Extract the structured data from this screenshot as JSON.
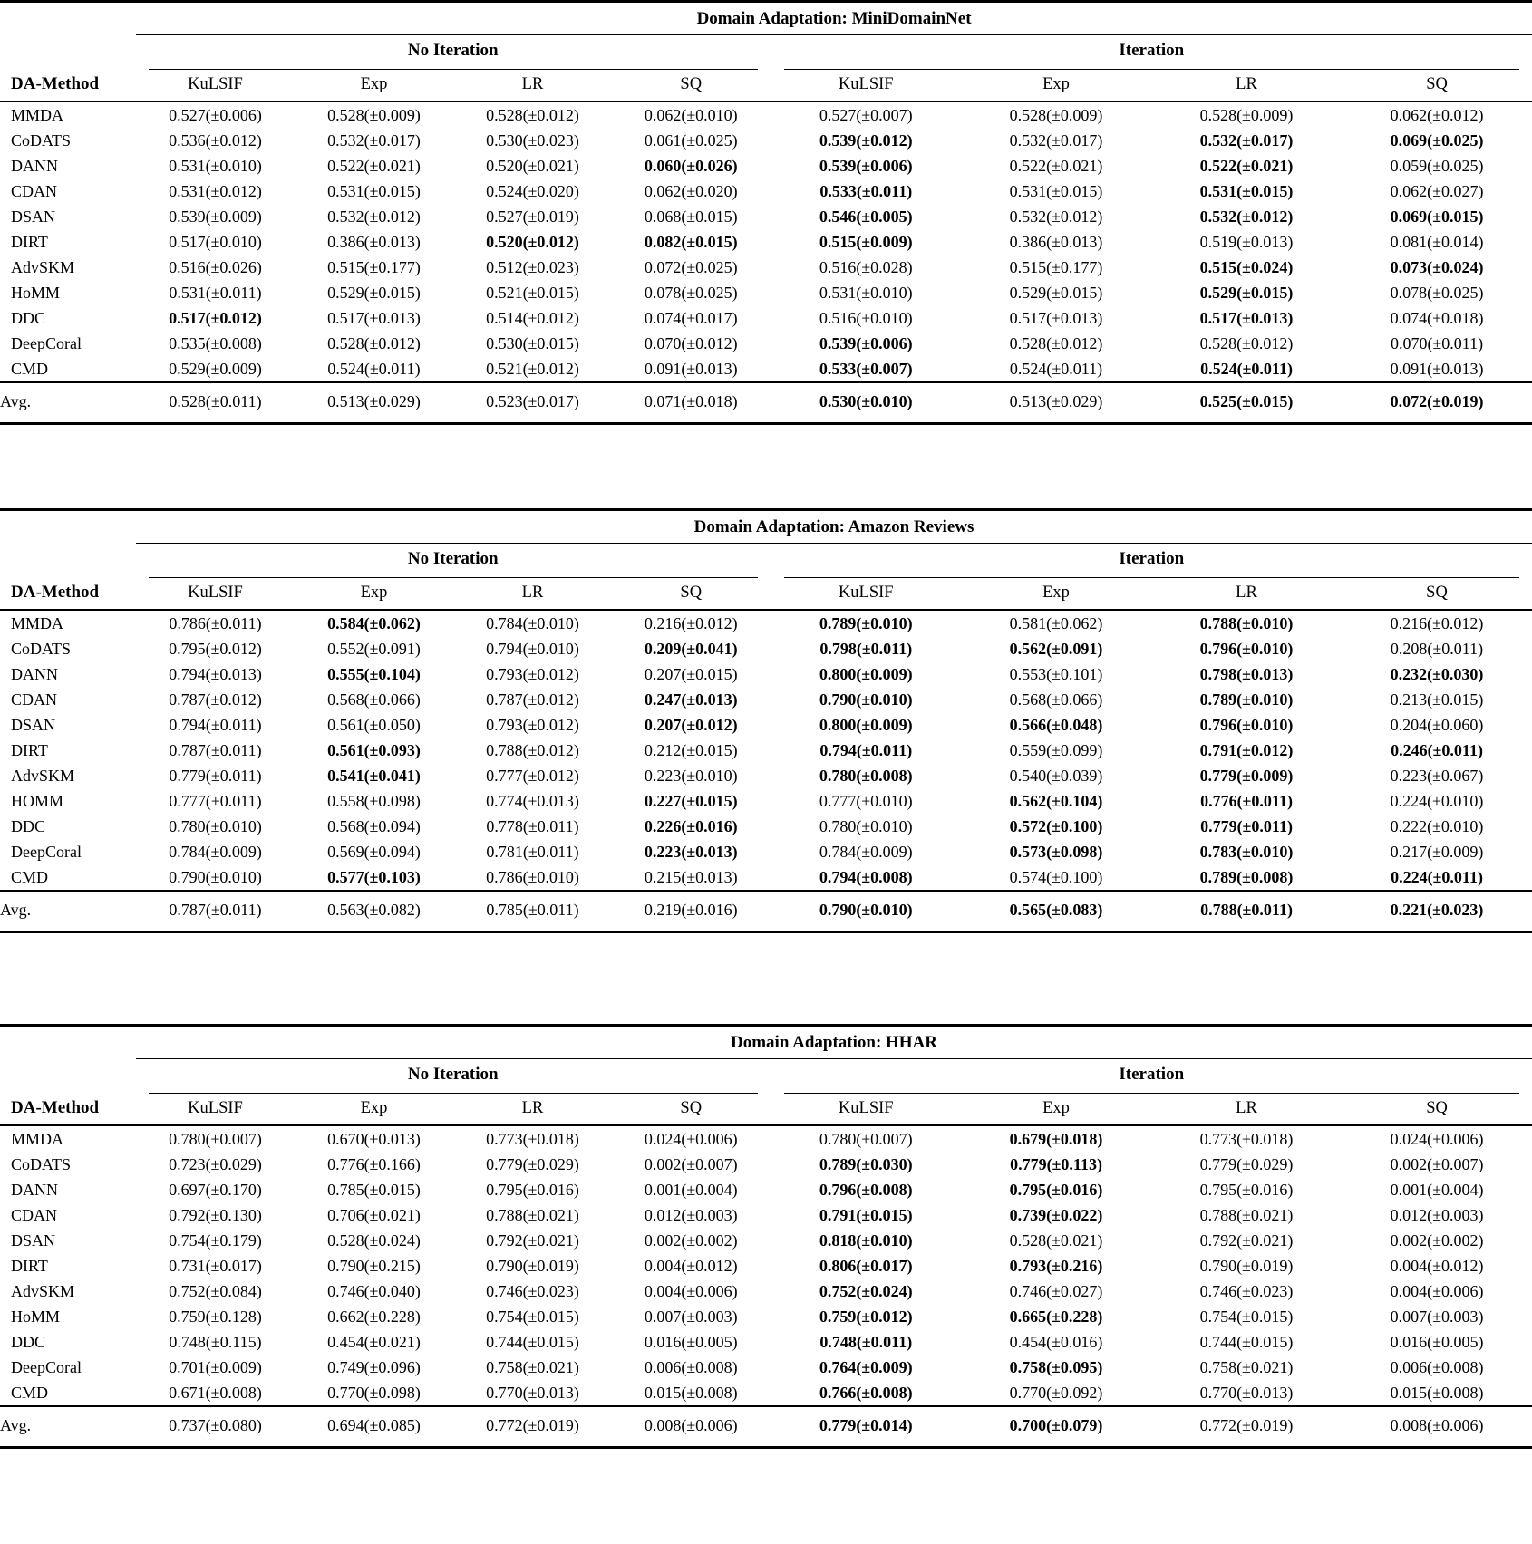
{
  "page": {
    "background_color": "#ffffff",
    "text_color": "#000000",
    "rule_color": "#000000"
  },
  "tables": [
    {
      "title": "Domain Adaptation: MiniDomainNet",
      "stub_header": "DA-Method",
      "group_headers": [
        "No Iteration",
        "Iteration"
      ],
      "column_headers": [
        "KuLSIF",
        "Exp",
        "LR",
        "SQ",
        "KuLSIF",
        "Exp",
        "LR",
        "SQ"
      ],
      "rows": [
        {
          "m": "MMDA",
          "v": [
            "0.527(±0.006)",
            "0.528(±0.009)",
            "0.528(±0.012)",
            "0.062(±0.010)",
            "0.527(±0.007)",
            "0.528(±0.009)",
            "0.528(±0.009)",
            "0.062(±0.012)"
          ],
          "b": [
            0,
            0,
            0,
            0,
            0,
            0,
            0,
            0
          ]
        },
        {
          "m": "CoDATS",
          "v": [
            "0.536(±0.012)",
            "0.532(±0.017)",
            "0.530(±0.023)",
            "0.061(±0.025)",
            "0.539(±0.012)",
            "0.532(±0.017)",
            "0.532(±0.017)",
            "0.069(±0.025)"
          ],
          "b": [
            0,
            0,
            0,
            0,
            1,
            0,
            1,
            1
          ]
        },
        {
          "m": "DANN",
          "v": [
            "0.531(±0.010)",
            "0.522(±0.021)",
            "0.520(±0.021)",
            "0.060(±0.026)",
            "0.539(±0.006)",
            "0.522(±0.021)",
            "0.522(±0.021)",
            "0.059(±0.025)"
          ],
          "b": [
            0,
            0,
            0,
            1,
            1,
            0,
            1,
            0
          ]
        },
        {
          "m": "CDAN",
          "v": [
            "0.531(±0.012)",
            "0.531(±0.015)",
            "0.524(±0.020)",
            "0.062(±0.020)",
            "0.533(±0.011)",
            "0.531(±0.015)",
            "0.531(±0.015)",
            "0.062(±0.027)"
          ],
          "b": [
            0,
            0,
            0,
            0,
            1,
            0,
            1,
            0
          ]
        },
        {
          "m": "DSAN",
          "v": [
            "0.539(±0.009)",
            "0.532(±0.012)",
            "0.527(±0.019)",
            "0.068(±0.015)",
            "0.546(±0.005)",
            "0.532(±0.012)",
            "0.532(±0.012)",
            "0.069(±0.015)"
          ],
          "b": [
            0,
            0,
            0,
            0,
            1,
            0,
            1,
            1
          ]
        },
        {
          "m": "DIRT",
          "v": [
            "0.517(±0.010)",
            "0.386(±0.013)",
            "0.520(±0.012)",
            "0.082(±0.015)",
            "0.515(±0.009)",
            "0.386(±0.013)",
            "0.519(±0.013)",
            "0.081(±0.014)"
          ],
          "b": [
            0,
            0,
            1,
            1,
            1,
            0,
            0,
            0
          ]
        },
        {
          "m": "AdvSKM",
          "v": [
            "0.516(±0.026)",
            "0.515(±0.177)",
            "0.512(±0.023)",
            "0.072(±0.025)",
            "0.516(±0.028)",
            "0.515(±0.177)",
            "0.515(±0.024)",
            "0.073(±0.024)"
          ],
          "b": [
            0,
            0,
            0,
            0,
            0,
            0,
            1,
            1
          ]
        },
        {
          "m": "HoMM",
          "v": [
            "0.531(±0.011)",
            "0.529(±0.015)",
            "0.521(±0.015)",
            "0.078(±0.025)",
            "0.531(±0.010)",
            "0.529(±0.015)",
            "0.529(±0.015)",
            "0.078(±0.025)"
          ],
          "b": [
            0,
            0,
            0,
            0,
            0,
            0,
            1,
            0
          ]
        },
        {
          "m": "DDC",
          "v": [
            "0.517(±0.012)",
            "0.517(±0.013)",
            "0.514(±0.012)",
            "0.074(±0.017)",
            "0.516(±0.010)",
            "0.517(±0.013)",
            "0.517(±0.013)",
            "0.074(±0.018)"
          ],
          "b": [
            1,
            0,
            0,
            0,
            0,
            0,
            1,
            0
          ]
        },
        {
          "m": "DeepCoral",
          "v": [
            "0.535(±0.008)",
            "0.528(±0.012)",
            "0.530(±0.015)",
            "0.070(±0.012)",
            "0.539(±0.006)",
            "0.528(±0.012)",
            "0.528(±0.012)",
            "0.070(±0.011)"
          ],
          "b": [
            0,
            0,
            0,
            0,
            1,
            0,
            0,
            0
          ]
        },
        {
          "m": "CMD",
          "v": [
            "0.529(±0.009)",
            "0.524(±0.011)",
            "0.521(±0.012)",
            "0.091(±0.013)",
            "0.533(±0.007)",
            "0.524(±0.011)",
            "0.524(±0.011)",
            "0.091(±0.013)"
          ],
          "b": [
            0,
            0,
            0,
            0,
            1,
            0,
            1,
            0
          ]
        }
      ],
      "avg": {
        "m": "Avg.",
        "v": [
          "0.528(±0.011)",
          "0.513(±0.029)",
          "0.523(±0.017)",
          "0.071(±0.018)",
          "0.530(±0.010)",
          "0.513(±0.029)",
          "0.525(±0.015)",
          "0.072(±0.019)"
        ],
        "b": [
          0,
          0,
          0,
          0,
          1,
          0,
          1,
          1
        ]
      }
    },
    {
      "title": "Domain Adaptation: Amazon Reviews",
      "stub_header": "DA-Method",
      "group_headers": [
        "No Iteration",
        "Iteration"
      ],
      "column_headers": [
        "KuLSIF",
        "Exp",
        "LR",
        "SQ",
        "KuLSIF",
        "Exp",
        "LR",
        "SQ"
      ],
      "rows": [
        {
          "m": "MMDA",
          "v": [
            "0.786(±0.011)",
            "0.584(±0.062)",
            "0.784(±0.010)",
            "0.216(±0.012)",
            "0.789(±0.010)",
            "0.581(±0.062)",
            "0.788(±0.010)",
            "0.216(±0.012)"
          ],
          "b": [
            0,
            1,
            0,
            0,
            1,
            0,
            1,
            0
          ]
        },
        {
          "m": "CoDATS",
          "v": [
            "0.795(±0.012)",
            "0.552(±0.091)",
            "0.794(±0.010)",
            "0.209(±0.041)",
            "0.798(±0.011)",
            "0.562(±0.091)",
            "0.796(±0.010)",
            "0.208(±0.011)"
          ],
          "b": [
            0,
            0,
            0,
            1,
            1,
            1,
            1,
            0
          ]
        },
        {
          "m": "DANN",
          "v": [
            "0.794(±0.013)",
            "0.555(±0.104)",
            "0.793(±0.012)",
            "0.207(±0.015)",
            "0.800(±0.009)",
            "0.553(±0.101)",
            "0.798(±0.013)",
            "0.232(±0.030)"
          ],
          "b": [
            0,
            1,
            0,
            0,
            1,
            0,
            1,
            1
          ]
        },
        {
          "m": "CDAN",
          "v": [
            "0.787(±0.012)",
            "0.568(±0.066)",
            "0.787(±0.012)",
            "0.247(±0.013)",
            "0.790(±0.010)",
            "0.568(±0.066)",
            "0.789(±0.010)",
            "0.213(±0.015)"
          ],
          "b": [
            0,
            0,
            0,
            1,
            1,
            0,
            1,
            0
          ]
        },
        {
          "m": "DSAN",
          "v": [
            "0.794(±0.011)",
            "0.561(±0.050)",
            "0.793(±0.012)",
            "0.207(±0.012)",
            "0.800(±0.009)",
            "0.566(±0.048)",
            "0.796(±0.010)",
            "0.204(±0.060)"
          ],
          "b": [
            0,
            0,
            0,
            1,
            1,
            1,
            1,
            0
          ]
        },
        {
          "m": "DIRT",
          "v": [
            "0.787(±0.011)",
            "0.561(±0.093)",
            "0.788(±0.012)",
            "0.212(±0.015)",
            "0.794(±0.011)",
            "0.559(±0.099)",
            "0.791(±0.012)",
            "0.246(±0.011)"
          ],
          "b": [
            0,
            1,
            0,
            0,
            1,
            0,
            1,
            1
          ]
        },
        {
          "m": "AdvSKM",
          "v": [
            "0.779(±0.011)",
            "0.541(±0.041)",
            "0.777(±0.012)",
            "0.223(±0.010)",
            "0.780(±0.008)",
            "0.540(±0.039)",
            "0.779(±0.009)",
            "0.223(±0.067)"
          ],
          "b": [
            0,
            1,
            0,
            0,
            1,
            0,
            1,
            0
          ]
        },
        {
          "m": "HOMM",
          "v": [
            "0.777(±0.011)",
            "0.558(±0.098)",
            "0.774(±0.013)",
            "0.227(±0.015)",
            "0.777(±0.010)",
            "0.562(±0.104)",
            "0.776(±0.011)",
            "0.224(±0.010)"
          ],
          "b": [
            0,
            0,
            0,
            1,
            0,
            1,
            1,
            0
          ]
        },
        {
          "m": "DDC",
          "v": [
            "0.780(±0.010)",
            "0.568(±0.094)",
            "0.778(±0.011)",
            "0.226(±0.016)",
            "0.780(±0.010)",
            "0.572(±0.100)",
            "0.779(±0.011)",
            "0.222(±0.010)"
          ],
          "b": [
            0,
            0,
            0,
            1,
            0,
            1,
            1,
            0
          ]
        },
        {
          "m": "DeepCoral",
          "v": [
            "0.784(±0.009)",
            "0.569(±0.094)",
            "0.781(±0.011)",
            "0.223(±0.013)",
            "0.784(±0.009)",
            "0.573(±0.098)",
            "0.783(±0.010)",
            "0.217(±0.009)"
          ],
          "b": [
            0,
            0,
            0,
            1,
            0,
            1,
            1,
            0
          ]
        },
        {
          "m": "CMD",
          "v": [
            "0.790(±0.010)",
            "0.577(±0.103)",
            "0.786(±0.010)",
            "0.215(±0.013)",
            "0.794(±0.008)",
            "0.574(±0.100)",
            "0.789(±0.008)",
            "0.224(±0.011)"
          ],
          "b": [
            0,
            1,
            0,
            0,
            1,
            0,
            1,
            1
          ]
        }
      ],
      "avg": {
        "m": "Avg.",
        "v": [
          "0.787(±0.011)",
          "0.563(±0.082)",
          "0.785(±0.011)",
          "0.219(±0.016)",
          "0.790(±0.010)",
          "0.565(±0.083)",
          "0.788(±0.011)",
          "0.221(±0.023)"
        ],
        "b": [
          0,
          0,
          0,
          0,
          1,
          1,
          1,
          1
        ]
      }
    },
    {
      "title": "Domain Adaptation: HHAR",
      "stub_header": "DA-Method",
      "group_headers": [
        "No Iteration",
        "Iteration"
      ],
      "column_headers": [
        "KuLSIF",
        "Exp",
        "LR",
        "SQ",
        "KuLSIF",
        "Exp",
        "LR",
        "SQ"
      ],
      "rows": [
        {
          "m": "MMDA",
          "v": [
            "0.780(±0.007)",
            "0.670(±0.013)",
            "0.773(±0.018)",
            "0.024(±0.006)",
            "0.780(±0.007)",
            "0.679(±0.018)",
            "0.773(±0.018)",
            "0.024(±0.006)"
          ],
          "b": [
            0,
            0,
            0,
            0,
            0,
            1,
            0,
            0
          ]
        },
        {
          "m": "CoDATS",
          "v": [
            "0.723(±0.029)",
            "0.776(±0.166)",
            "0.779(±0.029)",
            "0.002(±0.007)",
            "0.789(±0.030)",
            "0.779(±0.113)",
            "0.779(±0.029)",
            "0.002(±0.007)"
          ],
          "b": [
            0,
            0,
            0,
            0,
            1,
            1,
            0,
            0
          ]
        },
        {
          "m": "DANN",
          "v": [
            "0.697(±0.170)",
            "0.785(±0.015)",
            "0.795(±0.016)",
            "0.001(±0.004)",
            "0.796(±0.008)",
            "0.795(±0.016)",
            "0.795(±0.016)",
            "0.001(±0.004)"
          ],
          "b": [
            0,
            0,
            0,
            0,
            1,
            1,
            0,
            0
          ]
        },
        {
          "m": "CDAN",
          "v": [
            "0.792(±0.130)",
            "0.706(±0.021)",
            "0.788(±0.021)",
            "0.012(±0.003)",
            "0.791(±0.015)",
            "0.739(±0.022)",
            "0.788(±0.021)",
            "0.012(±0.003)"
          ],
          "b": [
            0,
            0,
            0,
            0,
            1,
            1,
            0,
            0
          ]
        },
        {
          "m": "DSAN",
          "v": [
            "0.754(±0.179)",
            "0.528(±0.024)",
            "0.792(±0.021)",
            "0.002(±0.002)",
            "0.818(±0.010)",
            "0.528(±0.021)",
            "0.792(±0.021)",
            "0.002(±0.002)"
          ],
          "b": [
            0,
            0,
            0,
            0,
            1,
            0,
            0,
            0
          ]
        },
        {
          "m": "DIRT",
          "v": [
            "0.731(±0.017)",
            "0.790(±0.215)",
            "0.790(±0.019)",
            "0.004(±0.012)",
            "0.806(±0.017)",
            "0.793(±0.216)",
            "0.790(±0.019)",
            "0.004(±0.012)"
          ],
          "b": [
            0,
            0,
            0,
            0,
            1,
            1,
            0,
            0
          ]
        },
        {
          "m": "AdvSKM",
          "v": [
            "0.752(±0.084)",
            "0.746(±0.040)",
            "0.746(±0.023)",
            "0.004(±0.006)",
            "0.752(±0.024)",
            "0.746(±0.027)",
            "0.746(±0.023)",
            "0.004(±0.006)"
          ],
          "b": [
            0,
            0,
            0,
            0,
            1,
            0,
            0,
            0
          ]
        },
        {
          "m": "HoMM",
          "v": [
            "0.759(±0.128)",
            "0.662(±0.228)",
            "0.754(±0.015)",
            "0.007(±0.003)",
            "0.759(±0.012)",
            "0.665(±0.228)",
            "0.754(±0.015)",
            "0.007(±0.003)"
          ],
          "b": [
            0,
            0,
            0,
            0,
            1,
            1,
            0,
            0
          ]
        },
        {
          "m": "DDC",
          "v": [
            "0.748(±0.115)",
            "0.454(±0.021)",
            "0.744(±0.015)",
            "0.016(±0.005)",
            "0.748(±0.011)",
            "0.454(±0.016)",
            "0.744(±0.015)",
            "0.016(±0.005)"
          ],
          "b": [
            0,
            0,
            0,
            0,
            1,
            0,
            0,
            0
          ]
        },
        {
          "m": "DeepCoral",
          "v": [
            "0.701(±0.009)",
            "0.749(±0.096)",
            "0.758(±0.021)",
            "0.006(±0.008)",
            "0.764(±0.009)",
            "0.758(±0.095)",
            "0.758(±0.021)",
            "0.006(±0.008)"
          ],
          "b": [
            0,
            0,
            0,
            0,
            1,
            1,
            0,
            0
          ]
        },
        {
          "m": "CMD",
          "v": [
            "0.671(±0.008)",
            "0.770(±0.098)",
            "0.770(±0.013)",
            "0.015(±0.008)",
            "0.766(±0.008)",
            "0.770(±0.092)",
            "0.770(±0.013)",
            "0.015(±0.008)"
          ],
          "b": [
            0,
            0,
            0,
            0,
            1,
            0,
            0,
            0
          ]
        }
      ],
      "avg": {
        "m": "Avg.",
        "v": [
          "0.737(±0.080)",
          "0.694(±0.085)",
          "0.772(±0.019)",
          "0.008(±0.006)",
          "0.779(±0.014)",
          "0.700(±0.079)",
          "0.772(±0.019)",
          "0.008(±0.006)"
        ],
        "b": [
          0,
          0,
          0,
          0,
          1,
          1,
          0,
          0
        ]
      }
    }
  ]
}
